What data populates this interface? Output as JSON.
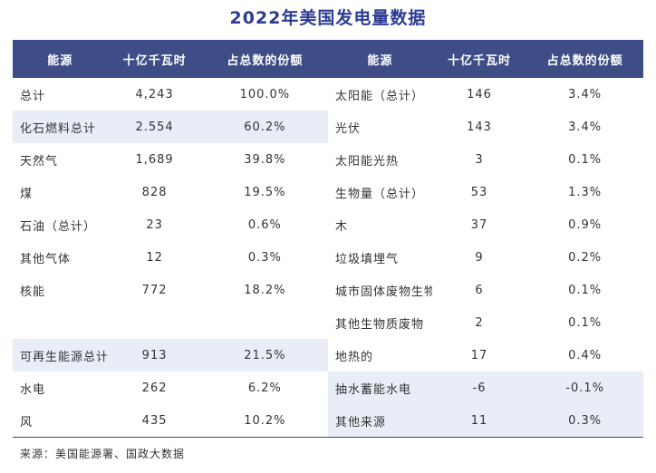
{
  "title": "2022年美国发电量数据",
  "source": "来源：美国能源署、国政大数据",
  "columns": [
    "能源",
    "十亿千瓦时",
    "占总数的份额"
  ],
  "colors": {
    "header_bg": "#3f4d87",
    "header_text": "#ffffff",
    "title": "#2d3c92",
    "shaded_row": "#e9edf7",
    "body_text": "#333333",
    "rule": "#4a4a4a"
  },
  "left_table": {
    "rows": [
      {
        "label": "总计",
        "value": "4,243",
        "share": "100.0%",
        "shaded": false
      },
      {
        "label": "化石燃料总计",
        "value": "2.554",
        "share": "60.2%",
        "shaded": true
      },
      {
        "label": "天然气",
        "value": "1,689",
        "share": "39.8%",
        "shaded": false
      },
      {
        "label": "煤",
        "value": "828",
        "share": "19.5%",
        "shaded": false
      },
      {
        "label": "石油（总计）",
        "value": "23",
        "share": "0.6%",
        "shaded": false
      },
      {
        "label": "其他气体",
        "value": "12",
        "share": "0.3%",
        "shaded": false
      },
      {
        "label": "核能",
        "value": "772",
        "share": "18.2%",
        "shaded": false
      },
      {
        "label": "",
        "value": "",
        "share": "",
        "shaded": false
      },
      {
        "label": "可再生能源总计",
        "value": "913",
        "share": "21.5%",
        "shaded": true
      },
      {
        "label": "水电",
        "value": "262",
        "share": "6.2%",
        "shaded": false
      },
      {
        "label": "风",
        "value": "435",
        "share": "10.2%",
        "shaded": false
      }
    ]
  },
  "right_table": {
    "rows": [
      {
        "label": "太阳能（总计）",
        "value": "146",
        "share": "3.4%",
        "shaded": false
      },
      {
        "label": "光伏",
        "value": "143",
        "share": "3.4%",
        "shaded": false
      },
      {
        "label": "太阳能光热",
        "value": "3",
        "share": "0.1%",
        "shaded": false
      },
      {
        "label": "生物量（总计）",
        "value": "53",
        "share": "1.3%",
        "shaded": false
      },
      {
        "label": "木",
        "value": "37",
        "share": "0.9%",
        "shaded": false
      },
      {
        "label": "垃圾填埋气",
        "value": "9",
        "share": "0.2%",
        "shaded": false
      },
      {
        "label": "城市固体废物生物",
        "value": "6",
        "share": "0.1%",
        "shaded": false
      },
      {
        "label": "其他生物质废物",
        "value": "2",
        "share": "0.1%",
        "shaded": false
      },
      {
        "label": "地热的",
        "value": "17",
        "share": "0.4%",
        "shaded": false
      },
      {
        "label": "抽水蓄能水电",
        "value": "-6",
        "share": "-0.1%",
        "shaded": true
      },
      {
        "label": "其他来源",
        "value": "11",
        "share": "0.3%",
        "shaded": true
      }
    ]
  },
  "chart_data": {
    "type": "table",
    "title": "2022年美国发电量数据",
    "columns": [
      "能源",
      "十亿千瓦时",
      "占总数的份额"
    ],
    "rows": [
      [
        "总计",
        "4,243",
        "100.0%"
      ],
      [
        "化石燃料总计",
        "2.554",
        "60.2%"
      ],
      [
        "天然气",
        "1,689",
        "39.8%"
      ],
      [
        "煤",
        "828",
        "19.5%"
      ],
      [
        "石油（总计）",
        "23",
        "0.6%"
      ],
      [
        "其他气体",
        "12",
        "0.3%"
      ],
      [
        "核能",
        "772",
        "18.2%"
      ],
      [
        "可再生能源总计",
        "913",
        "21.5%"
      ],
      [
        "水电",
        "262",
        "6.2%"
      ],
      [
        "风",
        "435",
        "10.2%"
      ],
      [
        "太阳能（总计）",
        "146",
        "3.4%"
      ],
      [
        "光伏",
        "143",
        "3.4%"
      ],
      [
        "太阳能光热",
        "3",
        "0.1%"
      ],
      [
        "生物量（总计）",
        "53",
        "1.3%"
      ],
      [
        "木",
        "37",
        "0.9%"
      ],
      [
        "垃圾填埋气",
        "9",
        "0.2%"
      ],
      [
        "城市固体废物生物",
        "6",
        "0.1%"
      ],
      [
        "其他生物质废物",
        "2",
        "0.1%"
      ],
      [
        "地热的",
        "17",
        "0.4%"
      ],
      [
        "抽水蓄能水电",
        "-6",
        "-0.1%"
      ],
      [
        "其他来源",
        "11",
        "0.3%"
      ]
    ],
    "source": "来源：美国能源署、国政大数据"
  }
}
